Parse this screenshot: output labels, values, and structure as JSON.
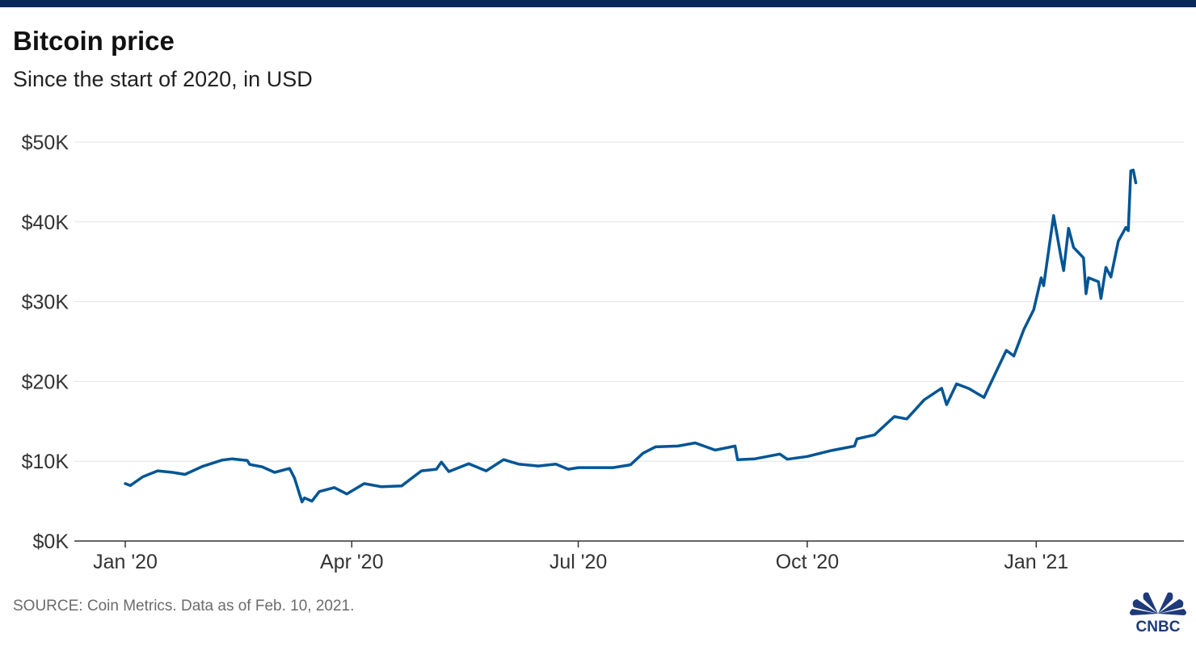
{
  "chart_data": {
    "type": "line",
    "title": "Bitcoin price",
    "subtitle": "Since the start of 2020, in USD",
    "source": "SOURCE: Coin Metrics. Data as of Feb. 10, 2021.",
    "ylim": [
      0,
      50000
    ],
    "y_ticks": [
      0,
      10000,
      20000,
      30000,
      40000,
      50000
    ],
    "y_tick_labels": [
      "$0K",
      "$10K",
      "$20K",
      "$30K",
      "$40K",
      "$50K"
    ],
    "x_ticks": [
      "2020-01-01",
      "2020-04-01",
      "2020-07-01",
      "2020-10-01",
      "2021-01-01"
    ],
    "x_tick_labels": [
      "Jan '20",
      "Apr '20",
      "Jul '20",
      "Oct '20",
      "Jan '21"
    ],
    "grid": true,
    "line_color": "#005594",
    "series": [
      {
        "x": [
          "2020-01-01",
          "2020-01-03",
          "2020-01-08",
          "2020-01-14",
          "2020-01-20",
          "2020-01-25",
          "2020-02-01",
          "2020-02-09",
          "2020-02-13",
          "2020-02-19",
          "2020-02-20",
          "2020-02-25",
          "2020-03-01",
          "2020-03-07",
          "2020-03-09",
          "2020-03-12",
          "2020-03-13",
          "2020-03-16",
          "2020-03-19",
          "2020-03-25",
          "2020-03-30",
          "2020-04-06",
          "2020-04-13",
          "2020-04-21",
          "2020-04-29",
          "2020-05-05",
          "2020-05-07",
          "2020-05-10",
          "2020-05-18",
          "2020-05-25",
          "2020-06-01",
          "2020-06-07",
          "2020-06-15",
          "2020-06-22",
          "2020-06-27",
          "2020-07-01",
          "2020-07-15",
          "2020-07-22",
          "2020-07-27",
          "2020-08-01",
          "2020-08-10",
          "2020-08-17",
          "2020-08-25",
          "2020-09-02",
          "2020-09-03",
          "2020-09-10",
          "2020-09-20",
          "2020-09-23",
          "2020-10-01",
          "2020-10-10",
          "2020-10-20",
          "2020-10-21",
          "2020-10-28",
          "2020-11-05",
          "2020-11-10",
          "2020-11-17",
          "2020-11-24",
          "2020-11-26",
          "2020-11-30",
          "2020-12-05",
          "2020-12-11",
          "2020-12-16",
          "2020-12-20",
          "2020-12-23",
          "2020-12-27",
          "2020-12-31",
          "2021-01-03",
          "2021-01-04",
          "2021-01-08",
          "2021-01-11",
          "2021-01-12",
          "2021-01-14",
          "2021-01-16",
          "2021-01-20",
          "2021-01-21",
          "2021-01-22",
          "2021-01-26",
          "2021-01-27",
          "2021-01-29",
          "2021-01-31",
          "2021-02-03",
          "2021-02-06",
          "2021-02-07",
          "2021-02-08",
          "2021-02-09",
          "2021-02-10"
        ],
        "y": [
          7200,
          6950,
          8050,
          8800,
          8600,
          8350,
          9350,
          10150,
          10300,
          10100,
          9600,
          9300,
          8600,
          9100,
          7900,
          4900,
          5400,
          5000,
          6200,
          6700,
          5900,
          7200,
          6800,
          6900,
          8800,
          9000,
          9900,
          8700,
          9700,
          8800,
          10200,
          9650,
          9400,
          9650,
          9000,
          9200,
          9200,
          9550,
          11000,
          11800,
          11900,
          12300,
          11400,
          11900,
          10200,
          10300,
          10900,
          10250,
          10600,
          11300,
          11900,
          12800,
          13300,
          15600,
          15300,
          17700,
          19150,
          17100,
          19700,
          19100,
          18000,
          21300,
          23900,
          23200,
          26500,
          29000,
          33000,
          32000,
          40800,
          35500,
          33900,
          39200,
          36800,
          35500,
          31000,
          33000,
          32500,
          30400,
          34300,
          33100,
          37600,
          39300,
          38900,
          46400,
          46500,
          44900
        ]
      }
    ]
  }
}
